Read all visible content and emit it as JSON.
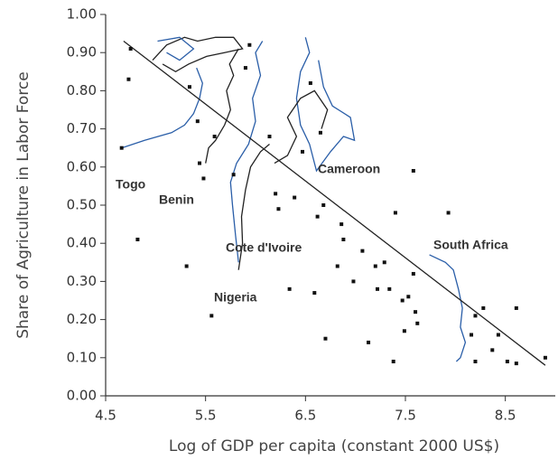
{
  "chart_data": {
    "type": "scatter",
    "xlabel": "Log of GDP per capita (constant 2000 US$)",
    "ylabel": "Share of Agriculture in Labor Force",
    "xlim": [
      4.5,
      9.0
    ],
    "ylim": [
      0,
      1
    ],
    "xticks": [
      4.5,
      5.5,
      6.5,
      7.5,
      8.5
    ],
    "yticks": [
      {
        "value": 0,
        "label": "0.00"
      },
      {
        "value": 0.1,
        "label": "0.10"
      },
      {
        "value": 0.2,
        "label": "0.20"
      },
      {
        "value": 0.3,
        "label": "0.30"
      },
      {
        "value": 0.4,
        "label": "0.40"
      },
      {
        "value": 0.5,
        "label": "0.50"
      },
      {
        "value": 0.6,
        "label": "0.60"
      },
      {
        "value": 0.7,
        "label": "0.70"
      },
      {
        "value": 0.8,
        "label": "0.80"
      },
      {
        "value": 0.9,
        "label": "0.90"
      },
      {
        "value": 1,
        "label": "1.00"
      }
    ],
    "color": "#111111",
    "x": [
      4.75,
      4.73,
      4.66,
      4.82,
      5.31,
      5.56,
      5.34,
      5.48,
      5.44,
      5.78,
      5.9,
      5.94,
      6.14,
      6.2,
      6.23,
      6.34,
      6.39,
      6.47,
      6.59,
      6.62,
      6.68,
      6.65,
      6.55,
      6.86,
      6.88,
      6.7,
      6.82,
      6.98,
      7.07,
      7.13,
      7.2,
      7.29,
      7.22,
      7.34,
      7.38,
      7.4,
      7.47,
      7.53,
      7.58,
      7.58,
      7.6,
      7.62,
      7.49,
      7.93,
      8.2,
      8.28,
      8.16,
      8.2,
      8.37,
      8.43,
      8.52,
      8.61,
      8.61,
      8.9,
      5.42,
      5.59
    ],
    "values": [
      0.91,
      0.83,
      0.65,
      0.41,
      0.34,
      0.21,
      0.81,
      0.57,
      0.61,
      0.58,
      0.86,
      0.92,
      0.68,
      0.53,
      0.49,
      0.28,
      0.52,
      0.64,
      0.27,
      0.47,
      0.5,
      0.69,
      0.82,
      0.45,
      0.41,
      0.15,
      0.34,
      0.3,
      0.38,
      0.14,
      0.34,
      0.35,
      0.28,
      0.28,
      0.09,
      0.48,
      0.25,
      0.26,
      0.32,
      0.59,
      0.22,
      0.19,
      0.17,
      0.48,
      0.21,
      0.23,
      0.16,
      0.09,
      0.12,
      0.16,
      0.09,
      0.085,
      0.23,
      0.1,
      0.72,
      0.68
    ],
    "fit_line": {
      "color": "#222222",
      "x": [
        4.68,
        8.9
      ],
      "values": [
        0.93,
        0.08
      ]
    },
    "series": [
      {
        "name": "Togo",
        "color": "#2a5ea8",
        "x": [
          4.66,
          4.89,
          5.16,
          5.29,
          5.38,
          5.44,
          5.47,
          5.41
        ],
        "values": [
          0.65,
          0.67,
          0.69,
          0.71,
          0.74,
          0.78,
          0.82,
          0.86
        ]
      },
      {
        "name": "Benin",
        "color": "#222222",
        "x": [
          5.5,
          5.53,
          5.6,
          5.69,
          5.75,
          5.71,
          5.78,
          5.74,
          5.83
        ],
        "values": [
          0.61,
          0.65,
          0.67,
          0.71,
          0.75,
          0.8,
          0.84,
          0.87,
          0.91
        ]
      },
      {
        "name": "Cote d'Ivoire",
        "color": "#2a5ea8",
        "x": [
          5.83,
          5.8,
          5.77,
          5.75,
          5.81,
          5.93,
          6.0,
          5.97,
          6.05,
          6.0,
          6.07
        ],
        "values": [
          0.35,
          0.42,
          0.5,
          0.56,
          0.61,
          0.66,
          0.72,
          0.78,
          0.84,
          0.9,
          0.93
        ]
      },
      {
        "name": "Nigeria",
        "color": "#222222",
        "x": [
          5.83,
          5.87,
          5.86,
          5.9,
          5.95,
          6.05,
          6.14
        ],
        "values": [
          0.33,
          0.4,
          0.47,
          0.54,
          0.6,
          0.64,
          0.66
        ]
      },
      {
        "name": "Cameroon",
        "color": "#2a5ea8",
        "x": [
          6.5,
          6.54,
          6.45,
          6.41,
          6.45,
          6.54,
          6.61,
          6.75,
          6.88,
          6.99,
          6.95,
          6.77,
          6.68,
          6.63
        ],
        "values": [
          0.94,
          0.9,
          0.85,
          0.78,
          0.71,
          0.66,
          0.59,
          0.64,
          0.68,
          0.67,
          0.73,
          0.76,
          0.81,
          0.88
        ]
      },
      {
        "name": "South Africa",
        "color": "#2a5ea8",
        "x": [
          7.74,
          7.9,
          7.98,
          8.03,
          8.07,
          8.05,
          8.1,
          8.05,
          8.01
        ],
        "values": [
          0.37,
          0.35,
          0.33,
          0.28,
          0.23,
          0.18,
          0.14,
          0.1,
          0.09
        ]
      },
      {
        "color": "#222222",
        "x": [
          4.97,
          5.11,
          5.29,
          5.42,
          5.6,
          5.78,
          5.87,
          5.69,
          5.51,
          5.33,
          5.2,
          5.07
        ],
        "values": [
          0.88,
          0.92,
          0.94,
          0.93,
          0.94,
          0.94,
          0.91,
          0.9,
          0.89,
          0.87,
          0.85,
          0.87
        ]
      },
      {
        "color": "#2a5ea8",
        "x": [
          5.02,
          5.24,
          5.38,
          5.24,
          5.11
        ],
        "values": [
          0.93,
          0.94,
          0.91,
          0.88,
          0.9
        ]
      },
      {
        "color": "#222222",
        "x": [
          6.19,
          6.32,
          6.41,
          6.32,
          6.45,
          6.59,
          6.72,
          6.66
        ],
        "values": [
          0.61,
          0.63,
          0.68,
          0.73,
          0.78,
          0.8,
          0.75,
          0.7
        ]
      }
    ]
  }
}
